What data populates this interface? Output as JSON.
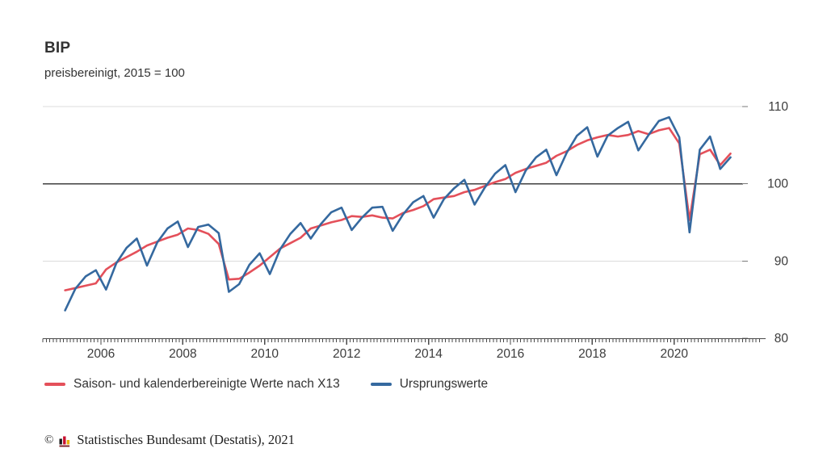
{
  "header": {
    "title": "BIP",
    "subtitle": "preisbereinigt, 2015 = 100"
  },
  "chart_data": {
    "type": "line",
    "title": "BIP",
    "subtitle": "preisbereinigt, 2015 = 100",
    "grid": "horizontal",
    "legend_position": "bottom",
    "ylim": [
      80,
      110
    ],
    "y_ticks": [
      110,
      100,
      90,
      80
    ],
    "reference_line_y": 100,
    "x_tick_years": [
      2006,
      2008,
      2010,
      2012,
      2014,
      2016,
      2018,
      2020
    ],
    "x_tick_labels": [
      "2006",
      "2008",
      "2010",
      "2012",
      "2014",
      "2016",
      "2018",
      "2020"
    ],
    "x_minor_tick_unit": "month",
    "categories": [
      "2005 Q1",
      "2005 Q2",
      "2005 Q3",
      "2005 Q4",
      "2006 Q1",
      "2006 Q2",
      "2006 Q3",
      "2006 Q4",
      "2007 Q1",
      "2007 Q2",
      "2007 Q3",
      "2007 Q4",
      "2008 Q1",
      "2008 Q2",
      "2008 Q3",
      "2008 Q4",
      "2009 Q1",
      "2009 Q2",
      "2009 Q3",
      "2009 Q4",
      "2010 Q1",
      "2010 Q2",
      "2010 Q3",
      "2010 Q4",
      "2011 Q1",
      "2011 Q2",
      "2011 Q3",
      "2011 Q4",
      "2012 Q1",
      "2012 Q2",
      "2012 Q3",
      "2012 Q4",
      "2013 Q1",
      "2013 Q2",
      "2013 Q3",
      "2013 Q4",
      "2014 Q1",
      "2014 Q2",
      "2014 Q3",
      "2014 Q4",
      "2015 Q1",
      "2015 Q2",
      "2015 Q3",
      "2015 Q4",
      "2016 Q1",
      "2016 Q2",
      "2016 Q3",
      "2016 Q4",
      "2017 Q1",
      "2017 Q2",
      "2017 Q3",
      "2017 Q4",
      "2018 Q1",
      "2018 Q2",
      "2018 Q3",
      "2018 Q4",
      "2019 Q1",
      "2019 Q2",
      "2019 Q3",
      "2019 Q4",
      "2020 Q1",
      "2020 Q2",
      "2020 Q3",
      "2020 Q4",
      "2021 Q1",
      "2021 Q2"
    ],
    "series": [
      {
        "name": "Saison- und kalenderbereinigte Werte nach X13",
        "color": "#e4505a",
        "values": [
          86.2,
          86.5,
          86.8,
          87.1,
          88.9,
          89.8,
          90.5,
          91.2,
          92.0,
          92.5,
          93.0,
          93.4,
          94.2,
          94.0,
          93.5,
          92.2,
          87.6,
          87.7,
          88.5,
          89.4,
          90.5,
          91.6,
          92.3,
          93.0,
          94.2,
          94.6,
          95.0,
          95.3,
          95.8,
          95.7,
          95.9,
          95.6,
          95.5,
          96.2,
          96.6,
          97.1,
          98.0,
          98.2,
          98.4,
          98.9,
          99.2,
          99.7,
          100.2,
          100.6,
          101.4,
          101.9,
          102.3,
          102.7,
          103.6,
          104.2,
          105.0,
          105.6,
          106.0,
          106.3,
          106.1,
          106.3,
          106.8,
          106.4,
          106.9,
          107.2,
          105.2,
          95.3,
          103.8,
          104.4,
          102.4,
          103.9
        ]
      },
      {
        "name": "Ursprungswerte",
        "color": "#35699f",
        "values": [
          83.6,
          86.4,
          88.0,
          88.8,
          86.3,
          89.7,
          91.7,
          92.9,
          89.4,
          92.4,
          94.2,
          95.1,
          91.8,
          94.4,
          94.7,
          93.6,
          86.0,
          87.0,
          89.5,
          91.0,
          88.3,
          91.5,
          93.5,
          94.9,
          92.9,
          94.8,
          96.3,
          96.9,
          94.0,
          95.6,
          96.9,
          97.0,
          93.9,
          96.0,
          97.6,
          98.4,
          95.6,
          98.0,
          99.4,
          100.5,
          97.3,
          99.5,
          101.3,
          102.4,
          98.9,
          101.7,
          103.4,
          104.4,
          101.1,
          104.0,
          106.2,
          107.3,
          103.5,
          106.2,
          107.2,
          108.0,
          104.3,
          106.3,
          108.1,
          108.6,
          106.0,
          93.7,
          104.4,
          106.1,
          101.9,
          103.4
        ]
      }
    ]
  },
  "legend": {
    "items": [
      {
        "label": "Saison- und kalenderbereinigte Werte nach X13",
        "color": "#e4505a"
      },
      {
        "label": "Ursprungswerte",
        "color": "#35699f"
      }
    ]
  },
  "footer": {
    "copyright": "©",
    "source": "Statistisches Bundesamt (Destatis), 2021",
    "logo_icon": "destatis-bar-chart-logo"
  },
  "colors": {
    "grid": "#dcdcdc",
    "reference_line": "#3f3f3f",
    "axis": "#4a4a4a",
    "tick_label": "#3c3c3c"
  }
}
